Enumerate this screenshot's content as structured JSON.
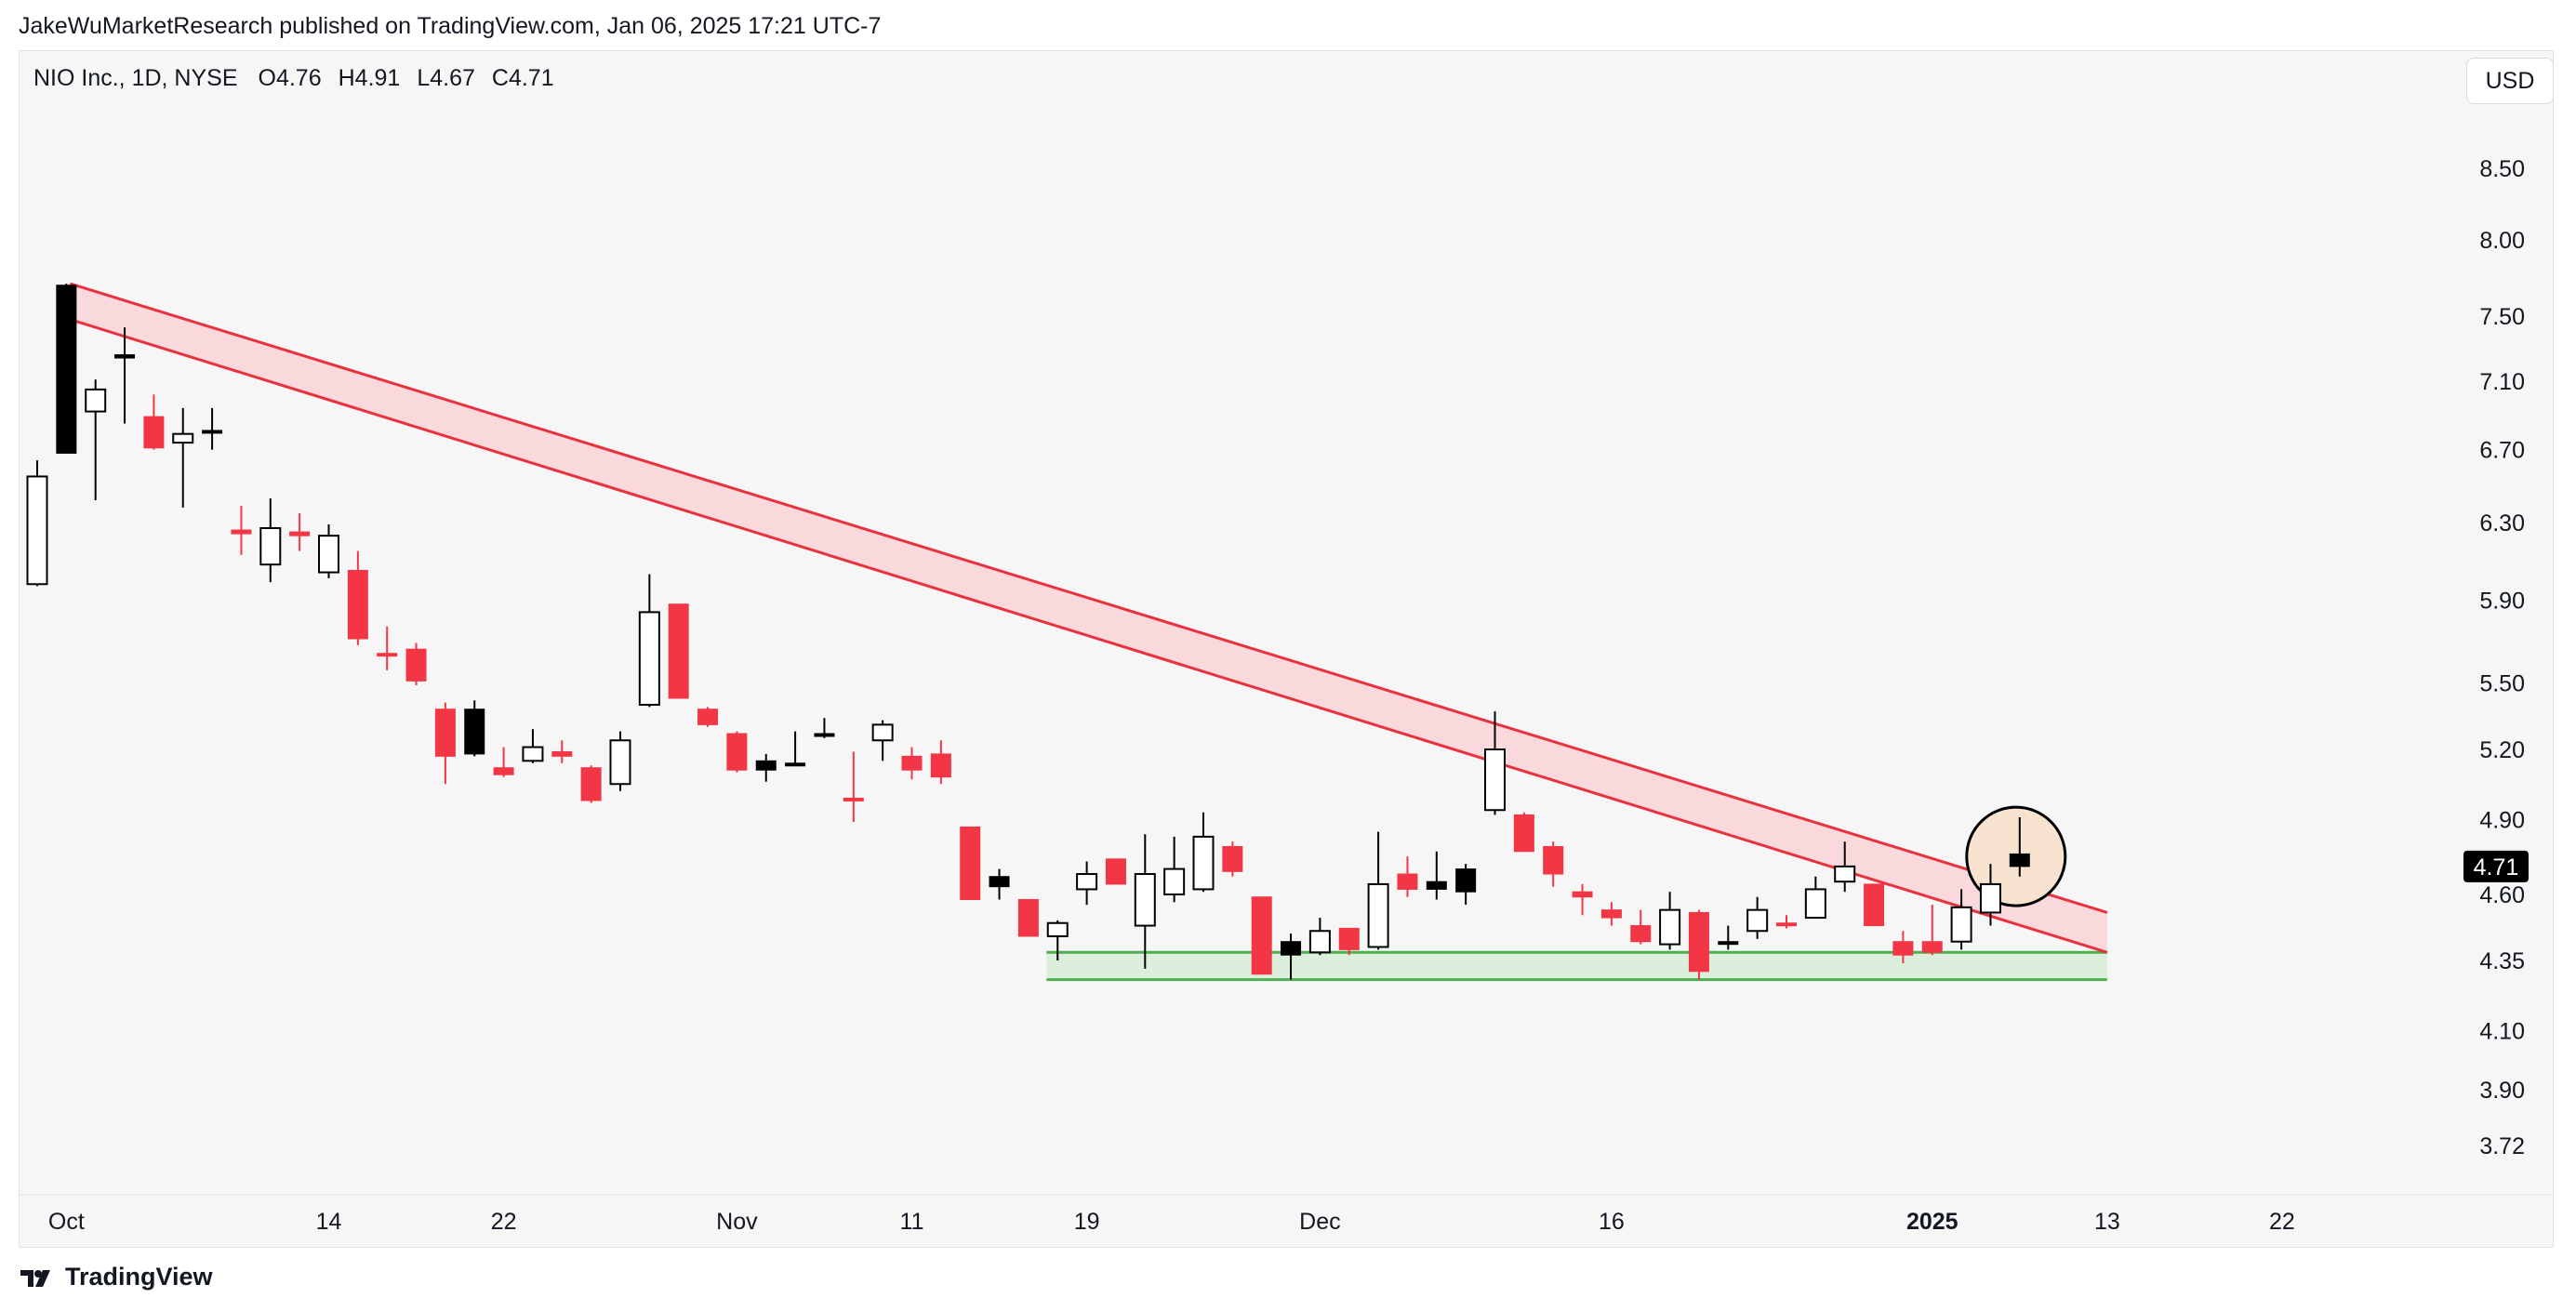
{
  "header": {
    "publish_line": "JakeWuMarketResearch published on TradingView.com, Jan 06, 2025 17:21 UTC-7"
  },
  "legend": {
    "symbol": "NIO Inc., 1D, NYSE",
    "open": "O4.76",
    "high": "H4.91",
    "low": "L4.67",
    "close": "C4.71"
  },
  "currency_label": "USD",
  "last_price_label": "4.71",
  "footer": {
    "brand": "TradingView",
    "logo_icon": "tradingview-logo-icon"
  },
  "colors": {
    "up_body": "#ffffff",
    "up_outline": "#000000",
    "down_red": "#f23645",
    "down_black": "#000000",
    "resistance_line": "#e8323f",
    "resistance_fill": "#f9d3d6",
    "support_line": "#4caf50",
    "support_fill": "#dcefdc",
    "highlight_fill": "#f8e3d0",
    "background": "#f6f6f6"
  },
  "chart_data": {
    "type": "candlestick",
    "symbol": "NIO Inc.",
    "interval": "1D",
    "exchange": "NYSE",
    "currency": "USD",
    "price_scale": "log",
    "y_ticks": [
      8.5,
      8.0,
      7.5,
      7.1,
      6.7,
      6.3,
      5.9,
      5.5,
      5.2,
      4.9,
      4.6,
      4.35,
      4.1,
      3.9,
      3.72
    ],
    "y_tick_labels": [
      "8.50",
      "8.00",
      "7.50",
      "7.10",
      "6.70",
      "6.30",
      "5.90",
      "5.50",
      "5.20",
      "4.90",
      "4.60",
      "4.35",
      "4.10",
      "3.90",
      "3.72"
    ],
    "x_ticks": [
      {
        "label": "Oct",
        "date": "2024-10-01",
        "bold": false
      },
      {
        "label": "14",
        "date": "2024-10-14",
        "bold": false
      },
      {
        "label": "22",
        "date": "2024-10-22",
        "bold": false
      },
      {
        "label": "Nov",
        "date": "2024-11-01",
        "bold": false
      },
      {
        "label": "11",
        "date": "2024-11-11",
        "bold": false
      },
      {
        "label": "19",
        "date": "2024-11-19",
        "bold": false
      },
      {
        "label": "Dec",
        "date": "2024-12-02",
        "bold": false
      },
      {
        "label": "16",
        "date": "2024-12-16",
        "bold": false
      },
      {
        "label": "2025",
        "date": "2025-01-02",
        "bold": true
      },
      {
        "label": "13",
        "date": "2025-01-13",
        "bold": false
      },
      {
        "label": "22",
        "date": "2025-01-22",
        "bold": false
      }
    ],
    "candles": [
      {
        "date": "2024-09-30",
        "open": 5.98,
        "high": 6.64,
        "low": 5.97,
        "close": 6.55,
        "color": "up"
      },
      {
        "date": "2024-10-01",
        "open": 6.68,
        "high": 7.71,
        "low": 6.68,
        "close": 7.7,
        "color": "black"
      },
      {
        "date": "2024-10-02",
        "open": 6.92,
        "high": 7.11,
        "low": 6.42,
        "close": 7.05,
        "color": "up"
      },
      {
        "date": "2024-10-03",
        "open": 7.26,
        "high": 7.43,
        "low": 6.85,
        "close": 7.24,
        "color": "black"
      },
      {
        "date": "2024-10-04",
        "open": 6.89,
        "high": 7.02,
        "low": 6.7,
        "close": 6.71,
        "color": "red"
      },
      {
        "date": "2024-10-07",
        "open": 6.74,
        "high": 6.94,
        "low": 6.38,
        "close": 6.79,
        "color": "up"
      },
      {
        "date": "2024-10-08",
        "open": 6.8,
        "high": 6.94,
        "low": 6.7,
        "close": 6.81,
        "color": "black"
      },
      {
        "date": "2024-10-09",
        "open": 6.26,
        "high": 6.39,
        "low": 6.13,
        "close": 6.24,
        "color": "red"
      },
      {
        "date": "2024-10-10",
        "open": 6.08,
        "high": 6.43,
        "low": 5.99,
        "close": 6.27,
        "color": "up"
      },
      {
        "date": "2024-10-11",
        "open": 6.25,
        "high": 6.35,
        "low": 6.15,
        "close": 6.23,
        "color": "red"
      },
      {
        "date": "2024-10-14",
        "open": 6.04,
        "high": 6.29,
        "low": 6.01,
        "close": 6.23,
        "color": "up"
      },
      {
        "date": "2024-10-15",
        "open": 6.05,
        "high": 6.15,
        "low": 5.68,
        "close": 5.71,
        "color": "red"
      },
      {
        "date": "2024-10-16",
        "open": 5.64,
        "high": 5.77,
        "low": 5.56,
        "close": 5.64,
        "color": "red"
      },
      {
        "date": "2024-10-17",
        "open": 5.66,
        "high": 5.69,
        "low": 5.49,
        "close": 5.51,
        "color": "red"
      },
      {
        "date": "2024-10-18",
        "open": 5.17,
        "high": 5.41,
        "low": 5.05,
        "close": 5.38,
        "color": "red"
      },
      {
        "date": "2024-10-21",
        "open": 5.38,
        "high": 5.42,
        "low": 5.17,
        "close": 5.18,
        "color": "black"
      },
      {
        "date": "2024-10-22",
        "open": 5.12,
        "high": 5.21,
        "low": 5.08,
        "close": 5.09,
        "color": "red"
      },
      {
        "date": "2024-10-23",
        "open": 5.15,
        "high": 5.29,
        "low": 5.14,
        "close": 5.21,
        "color": "up"
      },
      {
        "date": "2024-10-24",
        "open": 5.19,
        "high": 5.24,
        "low": 5.14,
        "close": 5.17,
        "color": "red"
      },
      {
        "date": "2024-10-25",
        "open": 4.98,
        "high": 5.13,
        "low": 4.97,
        "close": 5.12,
        "color": "red"
      },
      {
        "date": "2024-10-28",
        "open": 5.05,
        "high": 5.28,
        "low": 5.02,
        "close": 5.24,
        "color": "up"
      },
      {
        "date": "2024-10-29",
        "open": 5.4,
        "high": 6.03,
        "low": 5.39,
        "close": 5.84,
        "color": "up"
      },
      {
        "date": "2024-10-30",
        "open": 5.88,
        "high": 5.88,
        "low": 5.43,
        "close": 5.43,
        "color": "red"
      },
      {
        "date": "2024-10-31",
        "open": 5.38,
        "high": 5.39,
        "low": 5.3,
        "close": 5.31,
        "color": "red"
      },
      {
        "date": "2024-11-01",
        "open": 5.27,
        "high": 5.28,
        "low": 5.1,
        "close": 5.11,
        "color": "red"
      },
      {
        "date": "2024-11-04",
        "open": 5.15,
        "high": 5.18,
        "low": 5.06,
        "close": 5.11,
        "color": "black"
      },
      {
        "date": "2024-11-05",
        "open": 5.14,
        "high": 5.28,
        "low": 5.14,
        "close": 5.14,
        "color": "black"
      },
      {
        "date": "2024-11-06",
        "open": 5.27,
        "high": 5.34,
        "low": 5.25,
        "close": 5.27,
        "color": "black"
      },
      {
        "date": "2024-11-07",
        "open": 4.99,
        "high": 5.19,
        "low": 4.89,
        "close": 4.99,
        "color": "red"
      },
      {
        "date": "2024-11-08",
        "open": 5.24,
        "high": 5.33,
        "low": 5.15,
        "close": 5.31,
        "color": "up"
      },
      {
        "date": "2024-11-11",
        "open": 5.17,
        "high": 5.21,
        "low": 5.07,
        "close": 5.11,
        "color": "red"
      },
      {
        "date": "2024-11-12",
        "open": 5.18,
        "high": 5.24,
        "low": 5.05,
        "close": 5.08,
        "color": "red"
      },
      {
        "date": "2024-11-13",
        "open": 4.87,
        "high": 4.87,
        "low": 4.58,
        "close": 4.58,
        "color": "red"
      },
      {
        "date": "2024-11-14",
        "open": 4.67,
        "high": 4.7,
        "low": 4.58,
        "close": 4.63,
        "color": "black"
      },
      {
        "date": "2024-11-15",
        "open": 4.58,
        "high": 4.58,
        "low": 4.44,
        "close": 4.44,
        "color": "red"
      },
      {
        "date": "2024-11-18",
        "open": 4.44,
        "high": 4.5,
        "low": 4.35,
        "close": 4.49,
        "color": "up"
      },
      {
        "date": "2024-11-19",
        "open": 4.62,
        "high": 4.73,
        "low": 4.56,
        "close": 4.68,
        "color": "up"
      },
      {
        "date": "2024-11-20",
        "open": 4.74,
        "high": 4.74,
        "low": 4.64,
        "close": 4.64,
        "color": "red"
      },
      {
        "date": "2024-11-21",
        "open": 4.48,
        "high": 4.84,
        "low": 4.32,
        "close": 4.68,
        "color": "up"
      },
      {
        "date": "2024-11-22",
        "open": 4.6,
        "high": 4.83,
        "low": 4.57,
        "close": 4.7,
        "color": "up"
      },
      {
        "date": "2024-11-25",
        "open": 4.62,
        "high": 4.93,
        "low": 4.61,
        "close": 4.83,
        "color": "up"
      },
      {
        "date": "2024-11-26",
        "open": 4.79,
        "high": 4.81,
        "low": 4.67,
        "close": 4.69,
        "color": "red"
      },
      {
        "date": "2024-11-27",
        "open": 4.59,
        "high": 4.59,
        "low": 4.3,
        "close": 4.3,
        "color": "red"
      },
      {
        "date": "2024-11-29",
        "open": 4.37,
        "high": 4.45,
        "low": 4.28,
        "close": 4.42,
        "color": "black"
      },
      {
        "date": "2024-12-02",
        "open": 4.38,
        "high": 4.51,
        "low": 4.37,
        "close": 4.46,
        "color": "up"
      },
      {
        "date": "2024-12-03",
        "open": 4.47,
        "high": 4.47,
        "low": 4.37,
        "close": 4.39,
        "color": "red"
      },
      {
        "date": "2024-12-04",
        "open": 4.4,
        "high": 4.85,
        "low": 4.39,
        "close": 4.64,
        "color": "up"
      },
      {
        "date": "2024-12-05",
        "open": 4.68,
        "high": 4.75,
        "low": 4.59,
        "close": 4.62,
        "color": "red"
      },
      {
        "date": "2024-12-06",
        "open": 4.65,
        "high": 4.77,
        "low": 4.58,
        "close": 4.62,
        "color": "black"
      },
      {
        "date": "2024-12-09",
        "open": 4.7,
        "high": 4.72,
        "low": 4.56,
        "close": 4.61,
        "color": "black"
      },
      {
        "date": "2024-12-10",
        "open": 4.94,
        "high": 5.37,
        "low": 4.92,
        "close": 5.2,
        "color": "up"
      },
      {
        "date": "2024-12-11",
        "open": 4.92,
        "high": 4.93,
        "low": 4.77,
        "close": 4.77,
        "color": "red"
      },
      {
        "date": "2024-12-12",
        "open": 4.79,
        "high": 4.81,
        "low": 4.63,
        "close": 4.68,
        "color": "red"
      },
      {
        "date": "2024-12-13",
        "open": 4.61,
        "high": 4.64,
        "low": 4.52,
        "close": 4.59,
        "color": "red"
      },
      {
        "date": "2024-12-16",
        "open": 4.54,
        "high": 4.57,
        "low": 4.48,
        "close": 4.51,
        "color": "red"
      },
      {
        "date": "2024-12-17",
        "open": 4.48,
        "high": 4.54,
        "low": 4.41,
        "close": 4.42,
        "color": "red"
      },
      {
        "date": "2024-12-18",
        "open": 4.41,
        "high": 4.61,
        "low": 4.39,
        "close": 4.54,
        "color": "up"
      },
      {
        "date": "2024-12-19",
        "open": 4.53,
        "high": 4.54,
        "low": 4.28,
        "close": 4.31,
        "color": "red"
      },
      {
        "date": "2024-12-20",
        "open": 4.42,
        "high": 4.48,
        "low": 4.39,
        "close": 4.42,
        "color": "black"
      },
      {
        "date": "2024-12-23",
        "open": 4.46,
        "high": 4.59,
        "low": 4.43,
        "close": 4.54,
        "color": "up"
      },
      {
        "date": "2024-12-24",
        "open": 4.49,
        "high": 4.52,
        "low": 4.47,
        "close": 4.48,
        "color": "red"
      },
      {
        "date": "2024-12-26",
        "open": 4.51,
        "high": 4.67,
        "low": 4.51,
        "close": 4.62,
        "color": "up"
      },
      {
        "date": "2024-12-27",
        "open": 4.65,
        "high": 4.81,
        "low": 4.61,
        "close": 4.71,
        "color": "up"
      },
      {
        "date": "2024-12-30",
        "open": 4.64,
        "high": 4.64,
        "low": 4.48,
        "close": 4.48,
        "color": "red"
      },
      {
        "date": "2024-12-31",
        "open": 4.42,
        "high": 4.46,
        "low": 4.34,
        "close": 4.37,
        "color": "red"
      },
      {
        "date": "2025-01-02",
        "open": 4.42,
        "high": 4.56,
        "low": 4.37,
        "close": 4.38,
        "color": "red"
      },
      {
        "date": "2025-01-03",
        "open": 4.42,
        "high": 4.62,
        "low": 4.39,
        "close": 4.55,
        "color": "up"
      },
      {
        "date": "2025-01-06",
        "open": 4.53,
        "high": 4.72,
        "low": 4.48,
        "close": 4.64,
        "color": "up"
      },
      {
        "date": "2025-01-07",
        "open": 4.76,
        "high": 4.91,
        "low": 4.67,
        "close": 4.71,
        "color": "black"
      }
    ],
    "resistance_channel": {
      "upper": [
        {
          "date": "2024-10-01",
          "price": 7.71
        },
        {
          "date": "2025-01-13",
          "price": 4.53
        }
      ],
      "lower": [
        {
          "date": "2024-10-01",
          "price": 7.48
        },
        {
          "date": "2025-01-13",
          "price": 4.38
        }
      ]
    },
    "support_zone": {
      "from_date": "2024-11-18",
      "to_date": "2025-01-13",
      "top": 4.38,
      "bottom": 4.28
    },
    "highlight_circle": {
      "date": "2025-01-07",
      "price": 4.75
    },
    "last_price": 4.71
  }
}
